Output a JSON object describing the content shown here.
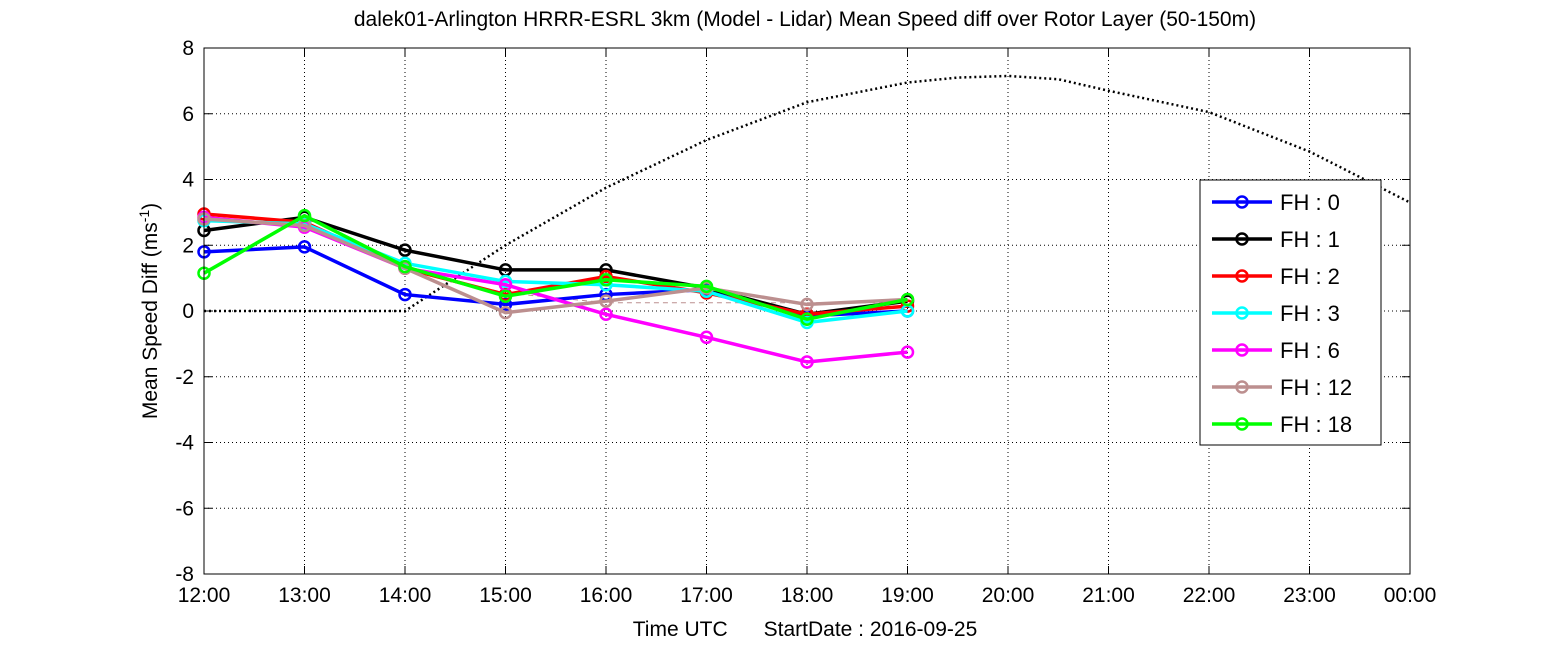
{
  "chart_data": {
    "type": "line",
    "title": "dalek01-Arlington HRRR-ESRL 3km (Model - Lidar) Mean Speed diff over Rotor Layer (50-150m)",
    "xlabel_main": "Time UTC",
    "xlabel_start": "StartDate : 2016-09-25",
    "ylabel": "Mean Speed Diff (ms",
    "ylabel_sup": "-1",
    "ylabel_close": ")",
    "ylim": [
      -8,
      8
    ],
    "yticks": [
      -8,
      -6,
      -4,
      -2,
      0,
      2,
      4,
      6,
      8
    ],
    "xlim": [
      12,
      24
    ],
    "xticks": [
      12,
      13,
      14,
      15,
      16,
      17,
      18,
      19,
      20,
      21,
      22,
      23,
      24
    ],
    "xtick_labels": [
      "12:00",
      "13:00",
      "14:00",
      "15:00",
      "16:00",
      "17:00",
      "18:00",
      "19:00",
      "20:00",
      "21:00",
      "22:00",
      "23:00",
      "00:00"
    ],
    "grid": true,
    "legend_position": "right",
    "x": [
      12,
      13,
      14,
      15,
      16,
      17,
      18,
      19
    ],
    "series": [
      {
        "name": "FH : 0",
        "color": "#0000ff",
        "values": [
          1.8,
          1.95,
          0.5,
          0.2,
          0.5,
          0.65,
          -0.15,
          0.0
        ]
      },
      {
        "name": "FH : 1",
        "color": "#000000",
        "values": [
          2.45,
          2.85,
          1.85,
          1.25,
          1.25,
          0.7,
          -0.1,
          0.3
        ]
      },
      {
        "name": "FH : 2",
        "color": "#ff0000",
        "values": [
          2.95,
          2.7,
          1.3,
          0.5,
          1.05,
          0.55,
          -0.1,
          0.15
        ]
      },
      {
        "name": "FH : 3",
        "color": "#00ffff",
        "values": [
          2.75,
          2.65,
          1.45,
          0.9,
          0.8,
          0.6,
          -0.35,
          0.0
        ]
      },
      {
        "name": "FH : 6",
        "color": "#ff00ff",
        "values": [
          2.85,
          2.55,
          1.3,
          0.8,
          -0.1,
          -0.8,
          -1.55,
          -1.25
        ]
      },
      {
        "name": "FH : 12",
        "color": "#bc8f8f",
        "values": [
          2.8,
          2.6,
          1.3,
          -0.05,
          0.3,
          0.7,
          0.2,
          0.35
        ]
      },
      {
        "name": "FH : 18",
        "color": "#00ff00",
        "values": [
          1.15,
          2.9,
          1.35,
          0.45,
          0.95,
          0.75,
          -0.25,
          0.35
        ]
      }
    ],
    "reference_curve": {
      "style": "dotted",
      "color": "#000000",
      "x": [
        12,
        14,
        15,
        16,
        17,
        18,
        19,
        19.5,
        20,
        20.5,
        21,
        22,
        23,
        24
      ],
      "values": [
        0.0,
        0.0,
        2.0,
        3.75,
        5.2,
        6.35,
        6.95,
        7.1,
        7.15,
        7.05,
        6.7,
        6.05,
        4.85,
        3.3
      ]
    },
    "dashed_line": {
      "style": "dashed",
      "color": "#bc8f8f",
      "x": [
        14,
        15,
        16,
        17,
        18,
        19
      ],
      "values": [
        1.25,
        0.55,
        0.25,
        0.25,
        0.25,
        0.25
      ]
    }
  }
}
